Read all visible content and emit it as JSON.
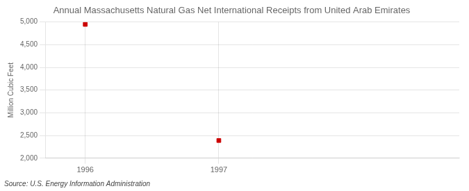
{
  "chart_data": {
    "type": "scatter",
    "title": "Annual Massachusetts Natural Gas Net International Receipts from United Arab Emirates",
    "ylabel": "Million Cubic Feet",
    "annotations": [
      "Source: U.S. Energy Information Administration"
    ],
    "x": [
      1996,
      1997
    ],
    "values": [
      4947,
      2390
    ],
    "color": "#cc0000",
    "marker": "square",
    "xlim": [
      1995.7,
      1998.8
    ],
    "ylim": [
      2000,
      5000
    ],
    "xticks": [
      1996,
      1997
    ],
    "yticks": [
      {
        "value": 2000,
        "label": "2,000"
      },
      {
        "value": 2500,
        "label": "2,500"
      },
      {
        "value": 3000,
        "label": "3,000"
      },
      {
        "value": 3500,
        "label": "3,500"
      },
      {
        "value": 4000,
        "label": "4,000"
      },
      {
        "value": 4500,
        "label": "4,500"
      },
      {
        "value": 5000,
        "label": "5,000"
      }
    ],
    "grid": true
  }
}
